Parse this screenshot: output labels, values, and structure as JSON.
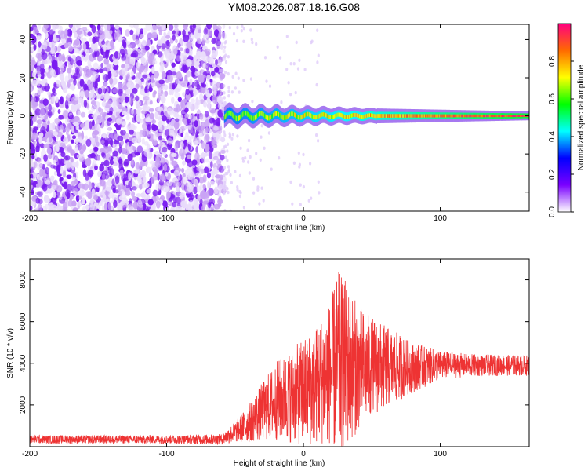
{
  "title": "YM08.2026.087.18.16.G08",
  "chart_data": [
    {
      "type": "heatmap",
      "xlabel": "Height of straight line (km)",
      "ylabel": "Frequency (Hz)",
      "xlim": [
        -200,
        165
      ],
      "ylim": [
        -50,
        48
      ],
      "xticks": [
        -200,
        -100,
        0,
        100
      ],
      "yticks": [
        -40,
        -20,
        0,
        20,
        40
      ],
      "colorbar": {
        "label": "Normalized spectral amplitude",
        "range": [
          0,
          1
        ],
        "ticks": [
          "0.0",
          "0.2",
          "0.4",
          "0.6",
          "0.8"
        ],
        "colors": [
          "#ffffff",
          "#7a00ff",
          "#0000ff",
          "#00ffff",
          "#00ff00",
          "#ffff00",
          "#ff6a00",
          "#ff0080"
        ]
      },
      "regions": [
        {
          "x_range": [
            -200,
            -58
          ],
          "frequency_range": [
            -50,
            48
          ],
          "description": "broadband noise",
          "amplitude": 0.1
        },
        {
          "x_range": [
            -58,
            165
          ],
          "frequency_range": [
            -4,
            4
          ],
          "description": "carrier band near 0 Hz",
          "amplitude": 0.9
        }
      ],
      "grid": false
    },
    {
      "type": "line",
      "xlabel": "Height of straight line (km)",
      "ylabel": "SNR (10 * v/v)",
      "xlim": [
        -200,
        165
      ],
      "ylim": [
        0,
        9000
      ],
      "xticks": [
        -200,
        -100,
        0,
        100
      ],
      "yticks": [
        2000,
        4000,
        6000,
        8000
      ],
      "series_color": "#ee3333",
      "grid": false,
      "envelope": {
        "x": [
          -200,
          -100,
          -60,
          -50,
          -40,
          -30,
          -20,
          -10,
          0,
          10,
          20,
          25,
          30,
          40,
          50,
          60,
          80,
          100,
          120,
          140,
          165
        ],
        "mean": [
          350,
          350,
          350,
          700,
          1100,
          1700,
          2200,
          2400,
          2600,
          3000,
          3600,
          3900,
          3900,
          3800,
          3800,
          3800,
          3800,
          3900,
          3900,
          3900,
          3900
        ],
        "amplitude": [
          200,
          200,
          250,
          500,
          900,
          1400,
          1900,
          2200,
          2600,
          2900,
          3500,
          4600,
          4200,
          3000,
          2400,
          2000,
          1200,
          700,
          550,
          500,
          500
        ]
      }
    }
  ]
}
